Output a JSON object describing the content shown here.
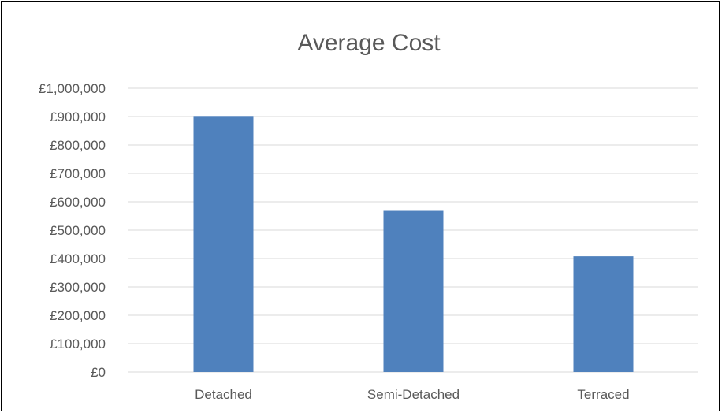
{
  "chart_data": {
    "type": "bar",
    "title": "Average Cost",
    "categories": [
      "Detached",
      "Semi-Detached",
      "Terraced"
    ],
    "series": [
      {
        "values": [
          902000,
          568000,
          408000
        ],
        "color": "#4f81bd"
      }
    ],
    "ylim": [
      0,
      1000000
    ],
    "yticks": [
      0,
      100000,
      200000,
      300000,
      400000,
      500000,
      600000,
      700000,
      800000,
      900000,
      1000000
    ],
    "ytick_labels": [
      "£0",
      "£100,000",
      "£200,000",
      "£300,000",
      "£400,000",
      "£500,000",
      "£600,000",
      "£700,000",
      "£800,000",
      "£900,000",
      "£1,000,000"
    ],
    "xlabel": "",
    "ylabel": "",
    "grid": true,
    "gridline_color": "#d9d9d9",
    "legend": "none"
  }
}
